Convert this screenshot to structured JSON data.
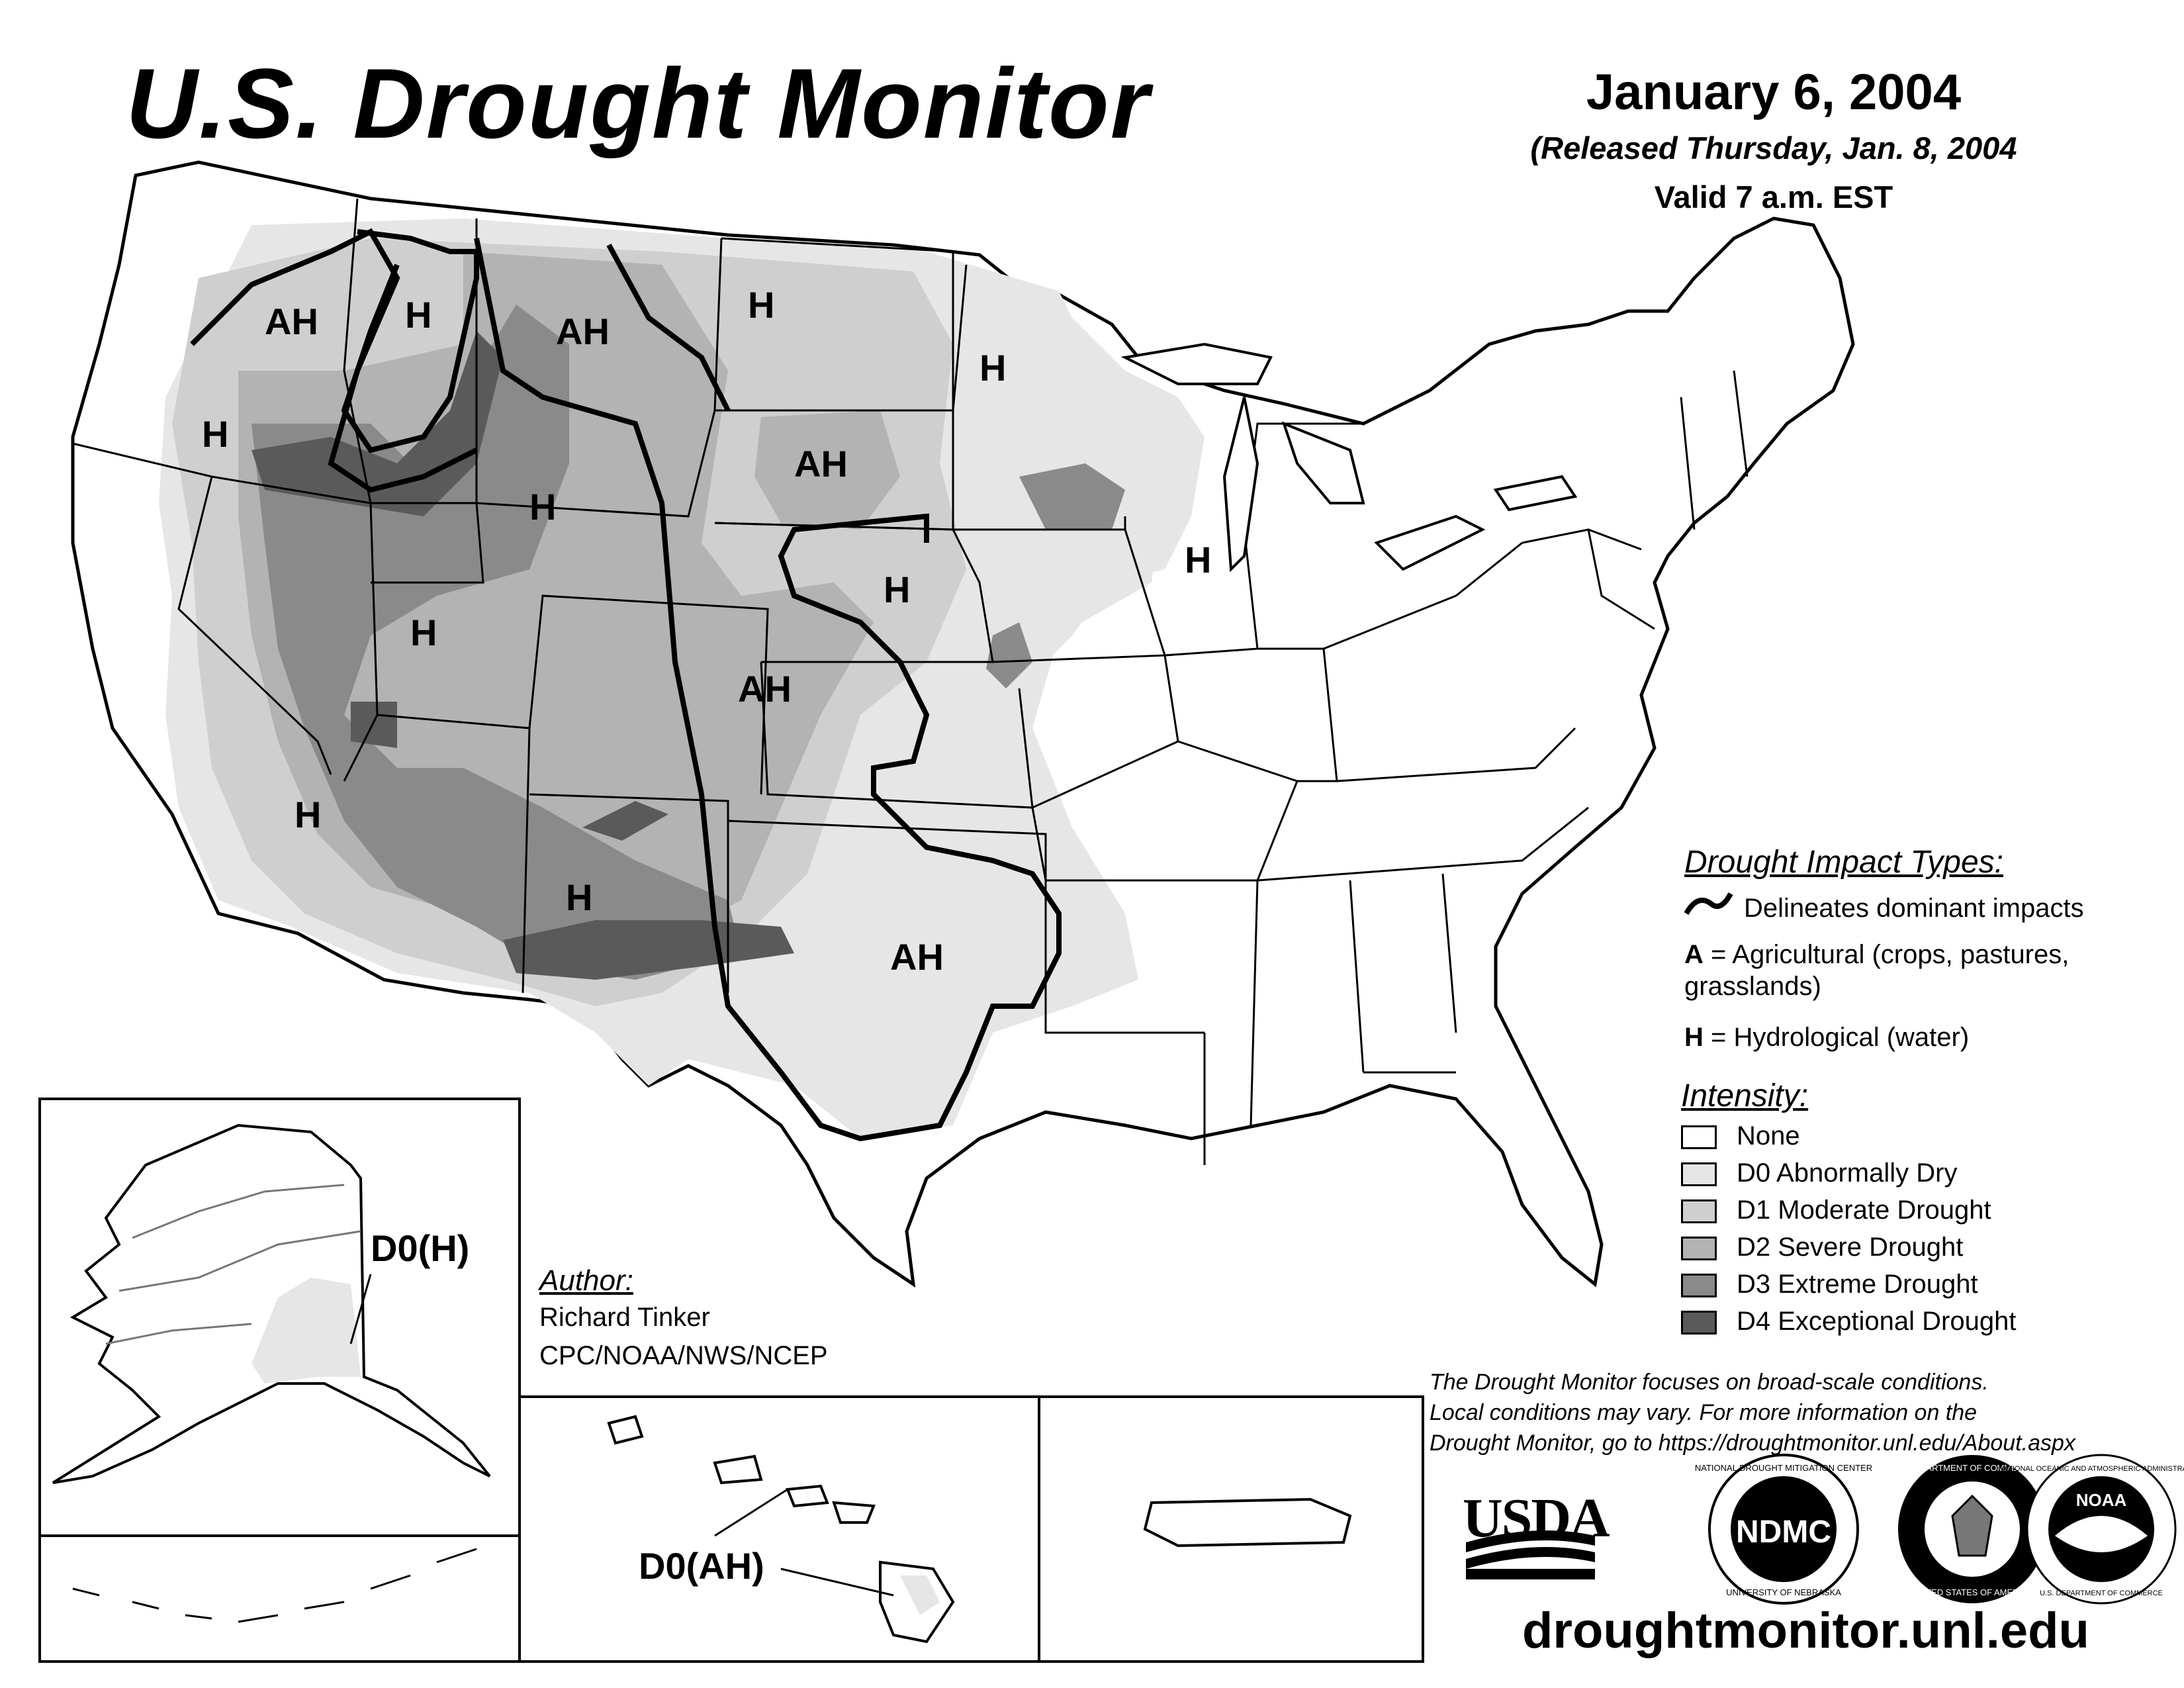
{
  "header": {
    "title": "U.S. Drought Monitor",
    "date": "January 6, 2004",
    "released": "(Released Thursday, Jan. 8, 2004",
    "valid": "Valid 7 a.m. EST"
  },
  "impact_legend": {
    "heading": "Drought Impact Types:",
    "line_item": "Delineates dominant impacts",
    "agricultural_key": "A",
    "agricultural_text": "= Agricultural (crops, pastures,",
    "agricultural_text_2": "grasslands)",
    "hydrological_key": "H",
    "hydrological_text": "= Hydrological (water)"
  },
  "intensity_legend": {
    "heading": "Intensity:",
    "items": [
      {
        "label": "None",
        "color": "#ffffff"
      },
      {
        "label": "D0 Abnormally Dry",
        "color": "#e6e6e6"
      },
      {
        "label": "D1 Moderate Drought",
        "color": "#cfcfcf"
      },
      {
        "label": "D2 Severe Drought",
        "color": "#b3b3b3"
      },
      {
        "label": "D3 Extreme Drought",
        "color": "#8a8a8a"
      },
      {
        "label": "D4 Exceptional Drought",
        "color": "#5a5a5a"
      }
    ]
  },
  "author": {
    "heading": "Author:",
    "name": "Richard Tinker",
    "org": "CPC/NOAA/NWS/NCEP"
  },
  "disclaimer": {
    "line1": "The Drought Monitor focuses on broad-scale conditions.",
    "line2": "Local conditions may vary. For more information on the",
    "line3": "Drought Monitor, go to https://droughtmonitor.unl.edu/About.aspx"
  },
  "logos": {
    "usda": "USDA",
    "ndmc": "NDMC",
    "ndmc_ring_top": "NATIONAL DROUGHT MITIGATION CENTER",
    "ndmc_ring_bottom": "UNIVERSITY OF NEBRASKA",
    "doc_ring_top": "DEPARTMENT OF COMMERCE",
    "doc_ring_bottom": "UNITED STATES OF AMERICA",
    "noaa": "NOAA",
    "noaa_ring_top": "NATIONAL OCEANIC AND ATMOSPHERIC ADMINISTRATION",
    "noaa_ring_bottom": "U.S. DEPARTMENT OF COMMERCE"
  },
  "website": "droughtmonitor.unl.edu",
  "map_labels": {
    "ah_wa": "AH",
    "h_id": "H",
    "ah_mt": "AH",
    "h_nd": "H",
    "h_mn": "H",
    "h_or": "H",
    "ah_sd": "AH",
    "h_wy": "H",
    "h_wi": "H",
    "h_ne": "H",
    "h_ut": "H",
    "ah_ks": "AH",
    "h_ca": "H",
    "h_nm": "H",
    "ah_tx": "AH",
    "alaska": "D0(H)",
    "hawaii": "D0(AH)"
  }
}
